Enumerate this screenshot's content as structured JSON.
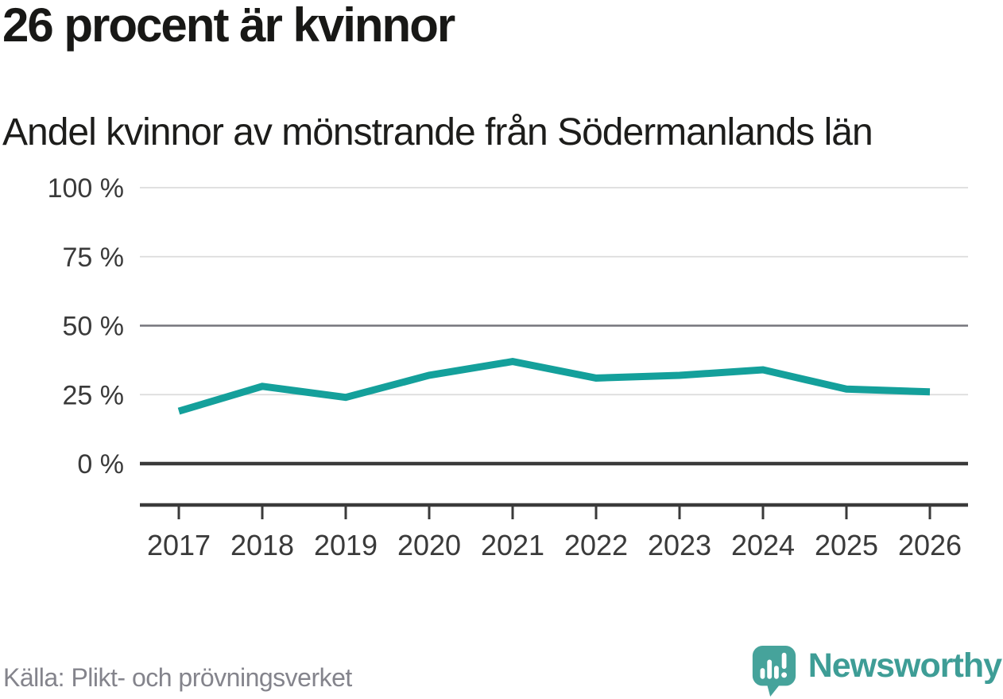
{
  "header": {
    "title": "26 procent är kvinnor",
    "subtitle": "Andel kvinnor av mönstrande från Södermanlands län"
  },
  "footer": {
    "source": "Källa: Plikt- och prövningsverket",
    "brand": "Newsworthy"
  },
  "colors": {
    "line": "#14a09b",
    "grid_light": "#dcdcdc",
    "grid_mid": "#75757c",
    "axis_dark": "#3a3a3a",
    "tick_label": "#3a3a3a",
    "title_text": "#181816",
    "source_text": "#84848c",
    "brand_teal": "#3e9d96",
    "logo_bubble": "#46a39b"
  },
  "chart_data": {
    "type": "line",
    "title": "26 procent är kvinnor",
    "subtitle": "Andel kvinnor av mönstrande från Södermanlands län",
    "x": [
      2017,
      2018,
      2019,
      2020,
      2021,
      2022,
      2023,
      2024,
      2025,
      2026
    ],
    "series": [
      {
        "name": "Andel kvinnor av mönstrande",
        "values": [
          19,
          28,
          24,
          32,
          37,
          31,
          32,
          34,
          27,
          26
        ]
      }
    ],
    "xlabel": "",
    "ylabel": "",
    "ylim": [
      0,
      100
    ],
    "yticks": [
      0,
      25,
      50,
      75,
      100
    ],
    "ytick_format": "{v} %",
    "grid": true,
    "legend": "none",
    "line_color": "#14a09b",
    "source": "Källa: Plikt- och prövningsverket"
  }
}
